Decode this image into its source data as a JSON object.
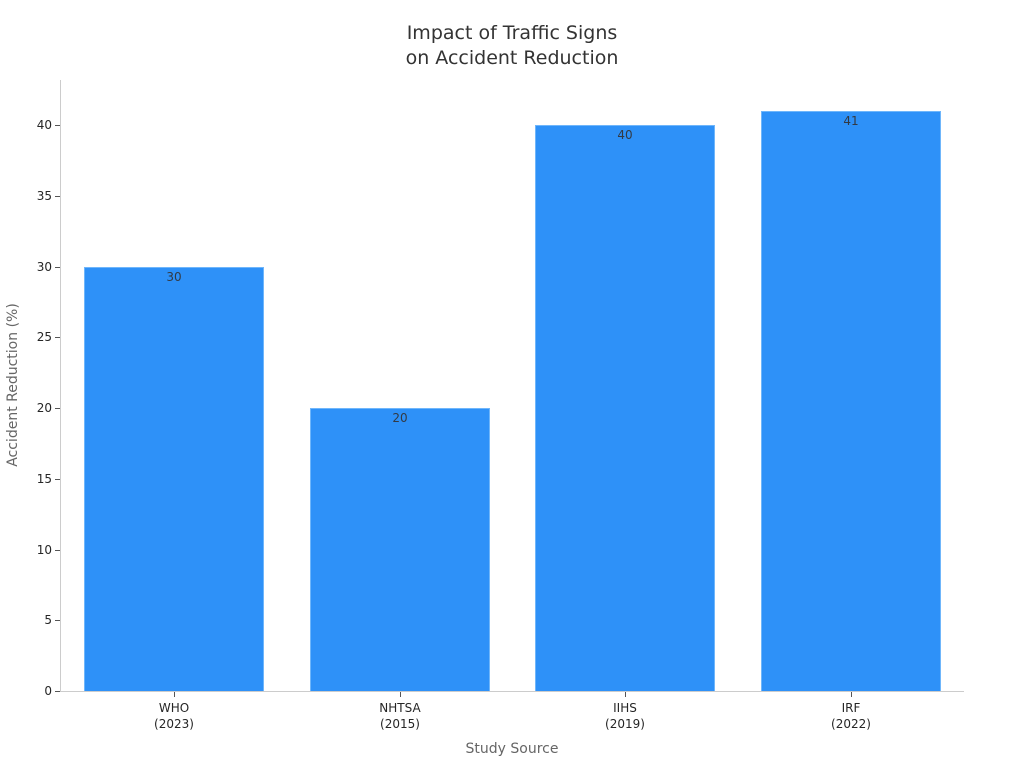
{
  "chart_data": {
    "type": "bar",
    "title": "Impact of Traffic Signs\non Accident Reduction",
    "title_lines": [
      "Impact of Traffic Signs",
      "on Accident Reduction"
    ],
    "xlabel": "Study Source",
    "ylabel": "Accident Reduction (%)",
    "categories": [
      "WHO\n(2023)",
      "NHTSA\n(2015)",
      "IIHS\n(2019)",
      "IRF\n(2022)"
    ],
    "values": [
      30,
      20,
      40,
      41
    ],
    "data_labels": [
      "30",
      "20",
      "40",
      "41"
    ],
    "ylim": [
      0,
      43
    ],
    "yticks": [
      0,
      5,
      10,
      15,
      20,
      25,
      30,
      35,
      40
    ],
    "grid": false,
    "legend": null,
    "bar_color": "#2e91f8"
  }
}
